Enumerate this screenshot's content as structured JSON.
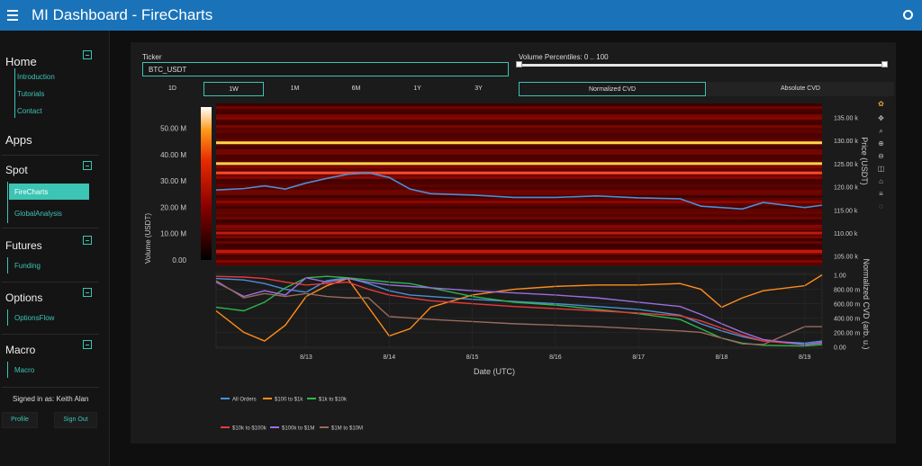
{
  "app": {
    "title": "MI Dashboard  -  FireCharts"
  },
  "sidebar": {
    "home": {
      "title": "Home",
      "links": [
        "Introduction",
        "Tutorials",
        "Contact"
      ]
    },
    "apps_title": "Apps",
    "spot": {
      "title": "Spot",
      "links": [
        "FireCharts",
        "GlobalAnalysis"
      ],
      "active": "FireCharts"
    },
    "futures": {
      "title": "Futures",
      "links": [
        "Funding"
      ]
    },
    "options": {
      "title": "Options",
      "links": [
        "OptionsFlow"
      ]
    },
    "macro": {
      "title": "Macro",
      "links": [
        "Macro"
      ]
    },
    "signed_in": "Signed in as: Keith Alan",
    "profile": "Profile",
    "signout": "Sign Out"
  },
  "controls": {
    "ticker_label": "Ticker",
    "ticker_value": "BTC_USDT",
    "volume_label": "Volume Percentiles: 0 .. 100",
    "timeframes": [
      "1D",
      "1W",
      "1M",
      "6M",
      "1Y",
      "3Y"
    ],
    "active_timeframe": "1W",
    "cvd_modes": [
      "Normalized CVD",
      "Absolute CVD"
    ],
    "active_cvd": "Normalized CVD"
  },
  "colors": {
    "accent": "#3cc4b4",
    "header": "#1a73b8",
    "all_orders": "#4a8fd6",
    "100_1k": "#ff8c1a",
    "1k_10k": "#2db84a",
    "10k_100k": "#e83a3a",
    "100k_1m": "#9a6ee0",
    "1m_10m": "#9a6a5e"
  },
  "toolbar_icons": [
    "plotly-logo-icon",
    "pan-icon",
    "zoom-icon",
    "zoom-in-icon",
    "zoom-out-icon",
    "autoscale-icon",
    "reset-icon",
    "spike-icon",
    "hover-icon"
  ],
  "chart_data": {
    "type": "heatmap",
    "colorbar": {
      "label": "Volume (USDT)",
      "ticks": [
        "50.00 M",
        "40.00 M",
        "30.00 M",
        "20.00 M",
        "10.00 M",
        "0.00"
      ],
      "values": [
        50,
        40,
        30,
        20,
        10,
        0
      ]
    },
    "price_axis": {
      "label": "Price (USDT)",
      "ticks": [
        "135.00 k",
        "130.00 k",
        "125.00 k",
        "120.00 k",
        "115.00 k",
        "110.00 k",
        "105.00 k"
      ],
      "values": [
        135,
        130,
        125,
        120,
        115,
        110,
        105
      ],
      "range": [
        103,
        138
      ]
    },
    "cvd_axis": {
      "label": "Normalized CVD (arb. u.)",
      "ticks": [
        "1.00",
        "800.00 m",
        "600.00 m",
        "400.00 m",
        "200.00 m",
        "0.00"
      ],
      "values": [
        1,
        0.8,
        0.6,
        0.4,
        0.2,
        0
      ],
      "range": [
        -0.02,
        1.02
      ]
    },
    "x_axis": {
      "label": "Date (UTC)",
      "ticks": [
        "8/13",
        "8/14",
        "8/15",
        "8/16",
        "8/17",
        "8/18",
        "8/19"
      ],
      "range_days": [
        "8/12 10:00",
        "8/19 17:00"
      ]
    },
    "hot_levels": [
      {
        "price": 129.5,
        "intensity": 0.95
      },
      {
        "price": 125.0,
        "intensity": 0.98
      },
      {
        "price": 123.0,
        "intensity": 0.6
      },
      {
        "price": 110.0,
        "intensity": 0.5
      },
      {
        "price": 106.0,
        "intensity": 0.45
      }
    ],
    "price_x": [
      "8/12 10:00",
      "8/12 18:00",
      "8/13 00:00",
      "8/13 06:00",
      "8/13 12:00",
      "8/13 18:00",
      "8/14 00:00",
      "8/14 06:00",
      "8/14 12:00",
      "8/14 18:00",
      "8/15 00:00",
      "8/15 12:00",
      "8/16 00:00",
      "8/16 12:00",
      "8/17 00:00",
      "8/17 12:00",
      "8/18 00:00",
      "8/18 06:00",
      "8/18 12:00",
      "8/18 18:00",
      "8/19 00:00",
      "8/19 12:00",
      "8/19 17:00"
    ],
    "price": [
      119.3,
      119.6,
      120.2,
      119.5,
      120.8,
      121.8,
      122.7,
      123.0,
      122.0,
      119.5,
      118.5,
      118.2,
      117.7,
      117.7,
      118.0,
      117.6,
      117.4,
      115.8,
      115.5,
      115.2,
      116.6,
      115.5,
      116.0
    ],
    "series": [
      {
        "name": "All Orders",
        "color_key": "all_orders",
        "values": [
          0.95,
          0.93,
          0.88,
          0.8,
          0.76,
          0.92,
          0.96,
          0.88,
          0.78,
          0.72,
          0.7,
          0.66,
          0.63,
          0.6,
          0.56,
          0.52,
          0.44,
          0.32,
          0.22,
          0.14,
          0.08,
          0.05,
          0.08
        ]
      },
      {
        "name": "$100 to $1k",
        "color_key": "100_1k",
        "values": [
          0.5,
          0.2,
          0.08,
          0.3,
          0.7,
          0.85,
          0.95,
          0.55,
          0.15,
          0.25,
          0.55,
          0.72,
          0.8,
          0.84,
          0.86,
          0.86,
          0.88,
          0.8,
          0.55,
          0.68,
          0.78,
          0.85,
          1.0
        ]
      },
      {
        "name": "$1k to $10k",
        "color_key": "1k_10k",
        "values": [
          0.55,
          0.5,
          0.62,
          0.82,
          0.96,
          0.98,
          0.96,
          0.93,
          0.9,
          0.88,
          0.82,
          0.7,
          0.62,
          0.58,
          0.52,
          0.46,
          0.38,
          0.25,
          0.12,
          0.05,
          0.02,
          0.01,
          0.03
        ]
      },
      {
        "name": "$10k to $100k",
        "color_key": "10k_100k",
        "values": [
          0.98,
          0.97,
          0.95,
          0.9,
          0.86,
          0.88,
          0.9,
          0.8,
          0.72,
          0.68,
          0.64,
          0.6,
          0.56,
          0.53,
          0.5,
          0.47,
          0.43,
          0.36,
          0.26,
          0.16,
          0.08,
          0.03,
          0.05
        ]
      },
      {
        "name": "$100k to $1M",
        "color_key": "100k_1m",
        "values": [
          0.9,
          0.7,
          0.78,
          0.72,
          0.96,
          0.9,
          0.95,
          0.9,
          0.86,
          0.84,
          0.82,
          0.78,
          0.75,
          0.72,
          0.68,
          0.62,
          0.56,
          0.45,
          0.32,
          0.2,
          0.1,
          0.03,
          0.06
        ]
      },
      {
        "name": "$1M to $10M",
        "color_key": "1m_10m",
        "values": [
          0.92,
          0.68,
          0.74,
          0.7,
          0.74,
          0.7,
          0.68,
          0.68,
          0.42,
          0.4,
          0.38,
          0.35,
          0.32,
          0.3,
          0.28,
          0.25,
          0.22,
          0.2,
          0.12,
          0.04,
          0.03,
          0.28,
          0.28
        ]
      }
    ],
    "legend_placement": "bottom"
  }
}
